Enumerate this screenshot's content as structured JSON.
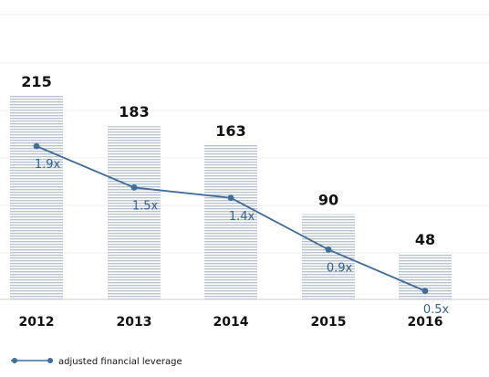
{
  "chart_data": {
    "type": "bar",
    "categories": [
      "2012",
      "2013",
      "2014",
      "2015",
      "2016"
    ],
    "series": [
      {
        "values": [
          215,
          183,
          163,
          90,
          48
        ],
        "labels": [
          "215",
          "183",
          "163",
          "90",
          "48"
        ],
        "color": "#b9c4d0"
      },
      {
        "name": "adjusted financial leverage",
        "type": "line",
        "values": [
          1.9,
          1.5,
          1.4,
          0.9,
          0.5
        ],
        "labels": [
          "1.9x",
          "1.5x",
          "1.4x",
          "0.9x",
          "0.5x"
        ],
        "color": "#3f6d9c"
      }
    ],
    "ylim": [
      0,
      250
    ],
    "grid": true,
    "legend": "bottom-left"
  }
}
